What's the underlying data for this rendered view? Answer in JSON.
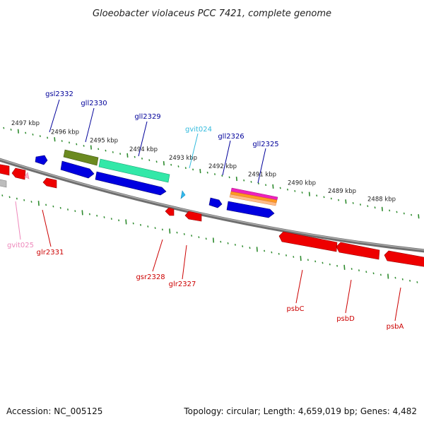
{
  "title": "Gloeobacter violaceus PCC 7421, complete genome",
  "footer": {
    "accession": "Accession: NC_005125",
    "summary": "Topology: circular; Length: 4,659,019 bp; Genes: 4,482"
  },
  "colors": {
    "backbone": "#7a7a7a",
    "tick": "#2e8b2e",
    "forward_label": "#00009a",
    "reverse_label": "#cc0000",
    "rna_forward_label": "#33bbdd",
    "rna_reverse_label": "#ee88bb"
  },
  "upper_scale": [
    {
      "label": "2497 kbp"
    },
    {
      "label": "2496 kbp"
    },
    {
      "label": "2495 kbp"
    },
    {
      "label": "2494 kbp"
    },
    {
      "label": "2493 kbp"
    },
    {
      "label": "2492 kbp"
    },
    {
      "label": "2491 kbp"
    },
    {
      "label": "2490 kbp"
    },
    {
      "label": "2489 kbp"
    },
    {
      "label": "2488 kbp"
    }
  ],
  "genes": [
    {
      "name": "gsl2332",
      "strand": "forward",
      "color": "#0000dd"
    },
    {
      "name": "gll2330",
      "strand": "forward",
      "color": "#0000dd"
    },
    {
      "name": "gll2329",
      "strand": "forward",
      "color": "#0000dd"
    },
    {
      "name": "gvit024",
      "strand": "forward",
      "color": "#33ccee"
    },
    {
      "name": "gll2326",
      "strand": "forward",
      "color": "#0000dd"
    },
    {
      "name": "gll2325",
      "strand": "forward",
      "color": "#0000dd"
    },
    {
      "name": "gvit025",
      "strand": "reverse",
      "color": "#ee88bb"
    },
    {
      "name": "glr2331",
      "strand": "reverse",
      "color": "#ee0000"
    },
    {
      "name": "gsr2328",
      "strand": "reverse",
      "color": "#ee0000"
    },
    {
      "name": "glr2327",
      "strand": "reverse",
      "color": "#ee0000"
    },
    {
      "name": "psbC",
      "strand": "reverse",
      "color": "#ee0000"
    },
    {
      "name": "psbD",
      "strand": "reverse",
      "color": "#ee0000"
    },
    {
      "name": "psbA",
      "strand": "reverse",
      "color": "#ee0000"
    }
  ]
}
